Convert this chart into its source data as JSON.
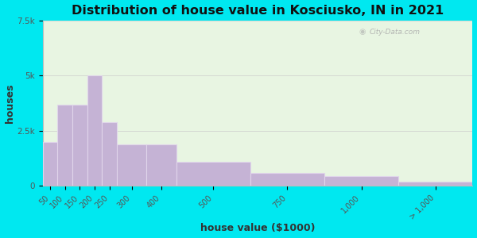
{
  "title": "Distribution of house value in Kosciusko, IN in 2021",
  "xlabel": "house value ($1000)",
  "ylabel": "houses",
  "bar_lefts": [
    50,
    100,
    150,
    200,
    250,
    300,
    400,
    500,
    750,
    1000,
    1250
  ],
  "bar_widths": [
    50,
    50,
    50,
    50,
    50,
    100,
    100,
    250,
    250,
    250,
    250
  ],
  "bar_values": [
    2000,
    3700,
    3700,
    5000,
    2900,
    1900,
    1900,
    1100,
    600,
    450,
    200
  ],
  "bar_tick_labels": [
    "50",
    "100",
    "150",
    "200",
    "250",
    "300",
    "400",
    "500",
    "750",
    "1,000",
    "> 1,000"
  ],
  "bar_color": "#c5b3d5",
  "bar_edge_color": "#e0d5ea",
  "ylim": [
    0,
    7500
  ],
  "yticks": [
    0,
    2500,
    5000,
    7500
  ],
  "ytick_labels": [
    "0",
    "2.5k",
    "5k",
    "7.5k"
  ],
  "xlim": [
    50,
    1500
  ],
  "bg_outer": "#00e8f0",
  "bg_plot": "#e8f5e2",
  "title_fontsize": 11.5,
  "axis_label_fontsize": 9,
  "watermark_text": "City-Data.com"
}
